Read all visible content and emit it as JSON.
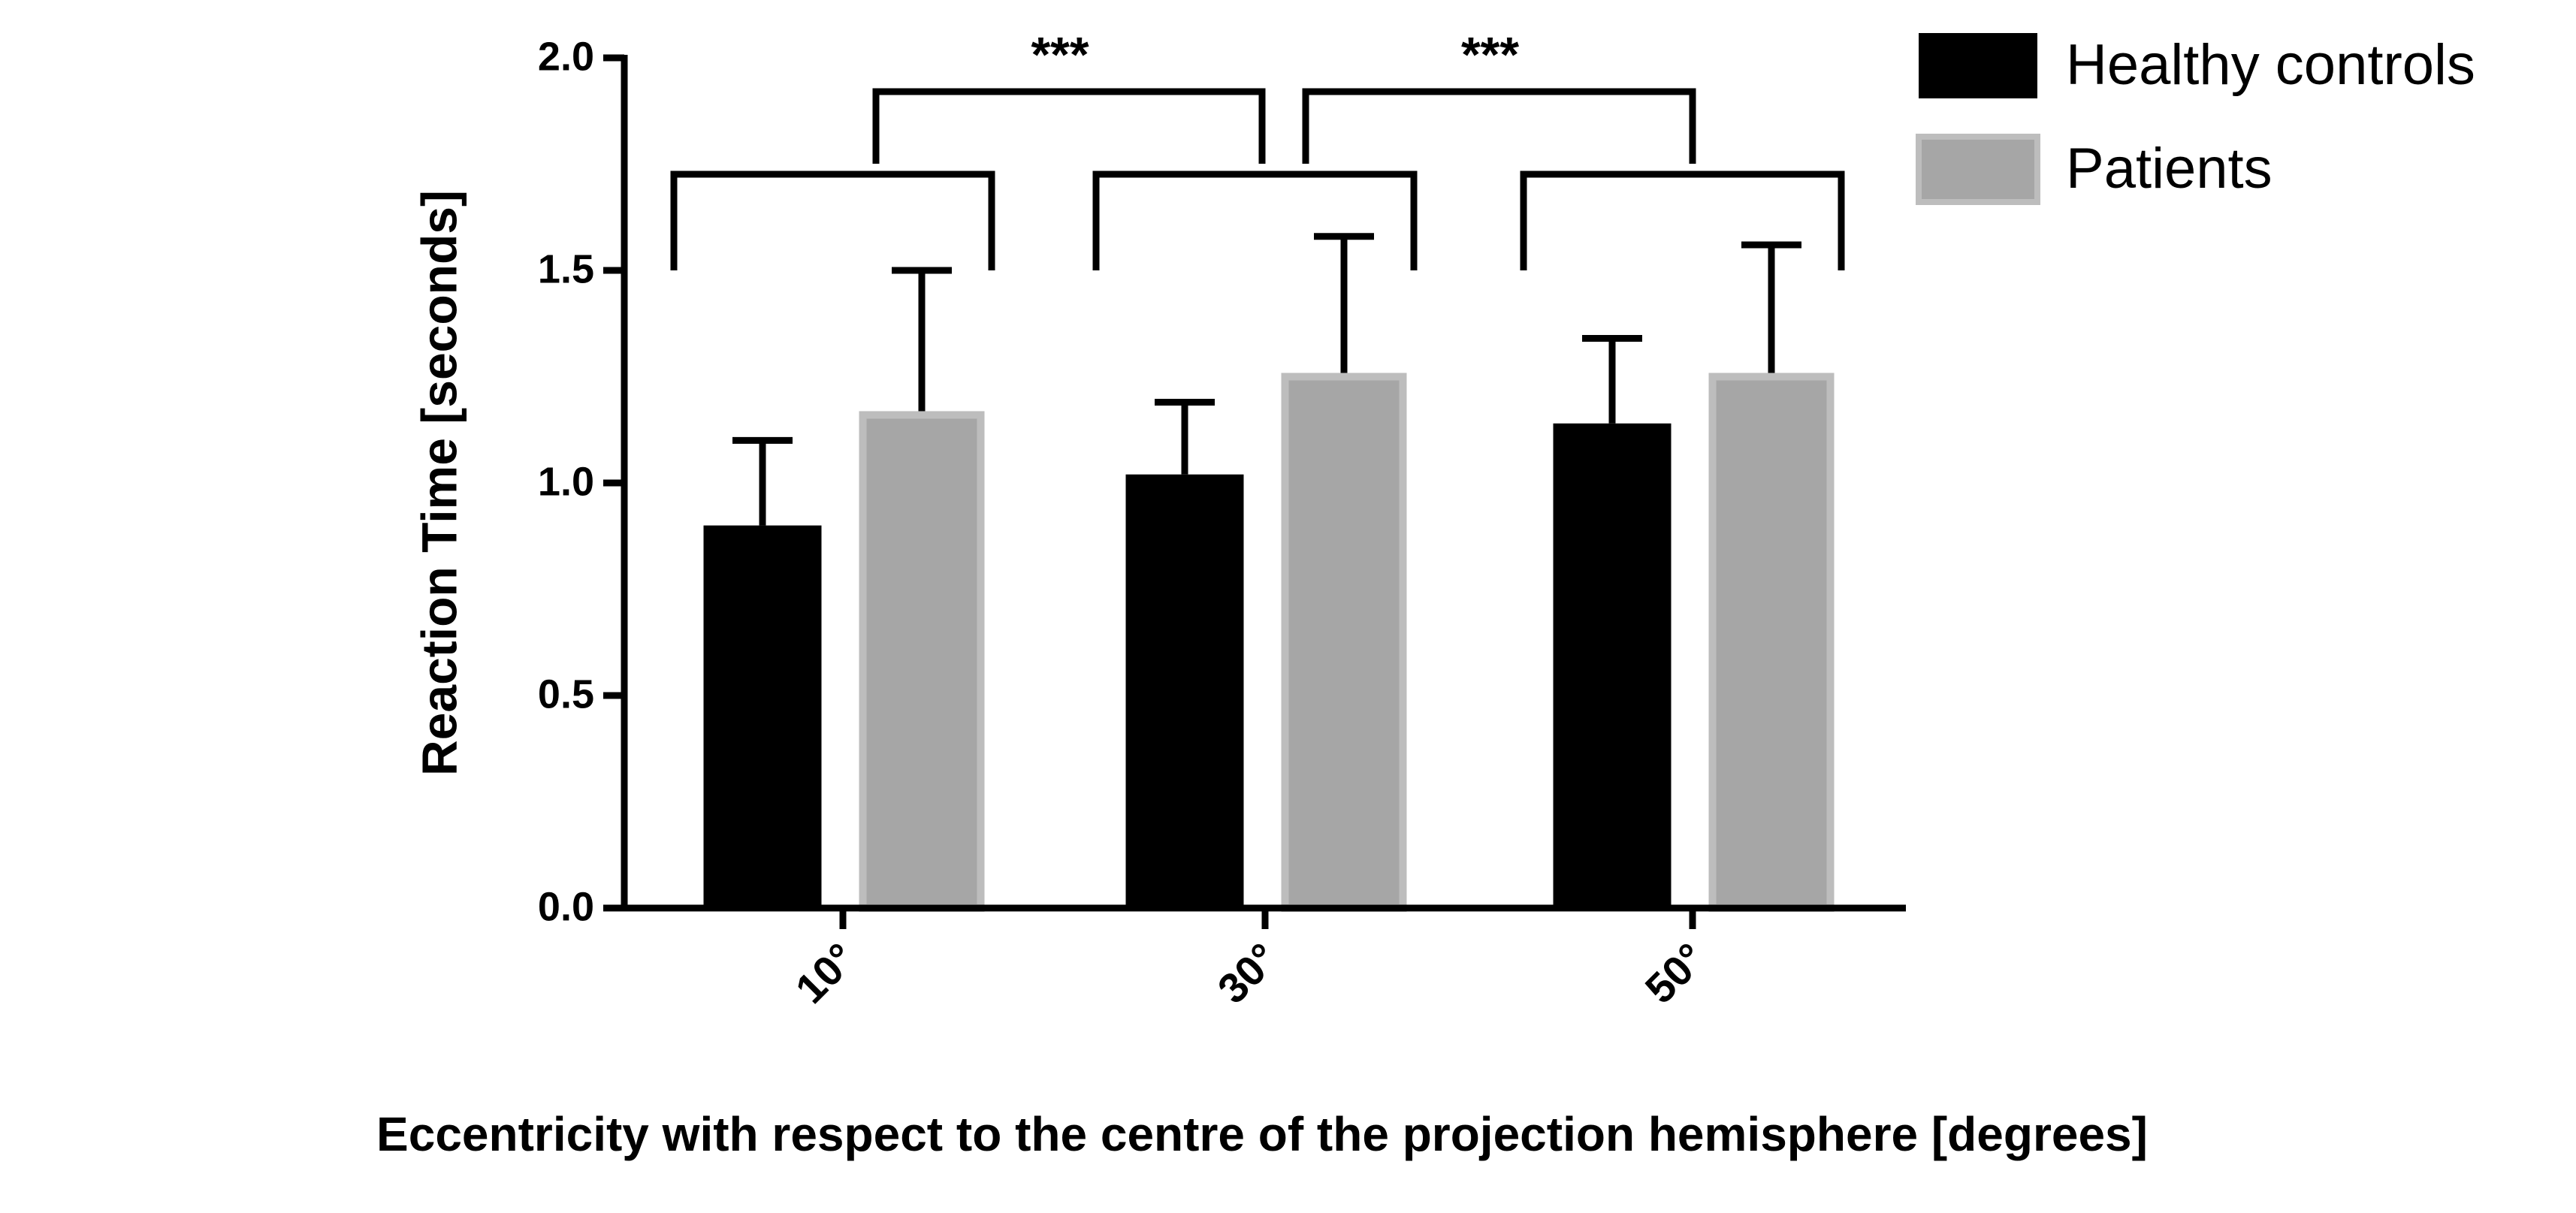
{
  "chart_data": {
    "type": "bar",
    "x_label": "Eccentricity with respect to the centre of the projection hemisphere [degrees]",
    "y_label": "Reaction Time [seconds]",
    "categories": [
      "10°",
      "30°",
      "50°"
    ],
    "series": [
      {
        "name": "Healthy controls",
        "color": "#000000",
        "values": [
          0.9,
          1.02,
          1.14
        ],
        "errors": [
          0.2,
          0.17,
          0.2
        ]
      },
      {
        "name": "Patients",
        "color": "#a6a6a6",
        "values": [
          1.16,
          1.25,
          1.25
        ],
        "errors": [
          0.34,
          0.33,
          0.31
        ]
      }
    ],
    "ylim": [
      0,
      2
    ],
    "yticks": [
      {
        "value": 0,
        "label": "0.0"
      },
      0.5,
      {
        "value": 1,
        "label": "1.0"
      },
      1.5,
      {
        "value": 2,
        "label": "2.0"
      }
    ],
    "annotations": [
      "***",
      "***"
    ],
    "legend": "top-right"
  }
}
